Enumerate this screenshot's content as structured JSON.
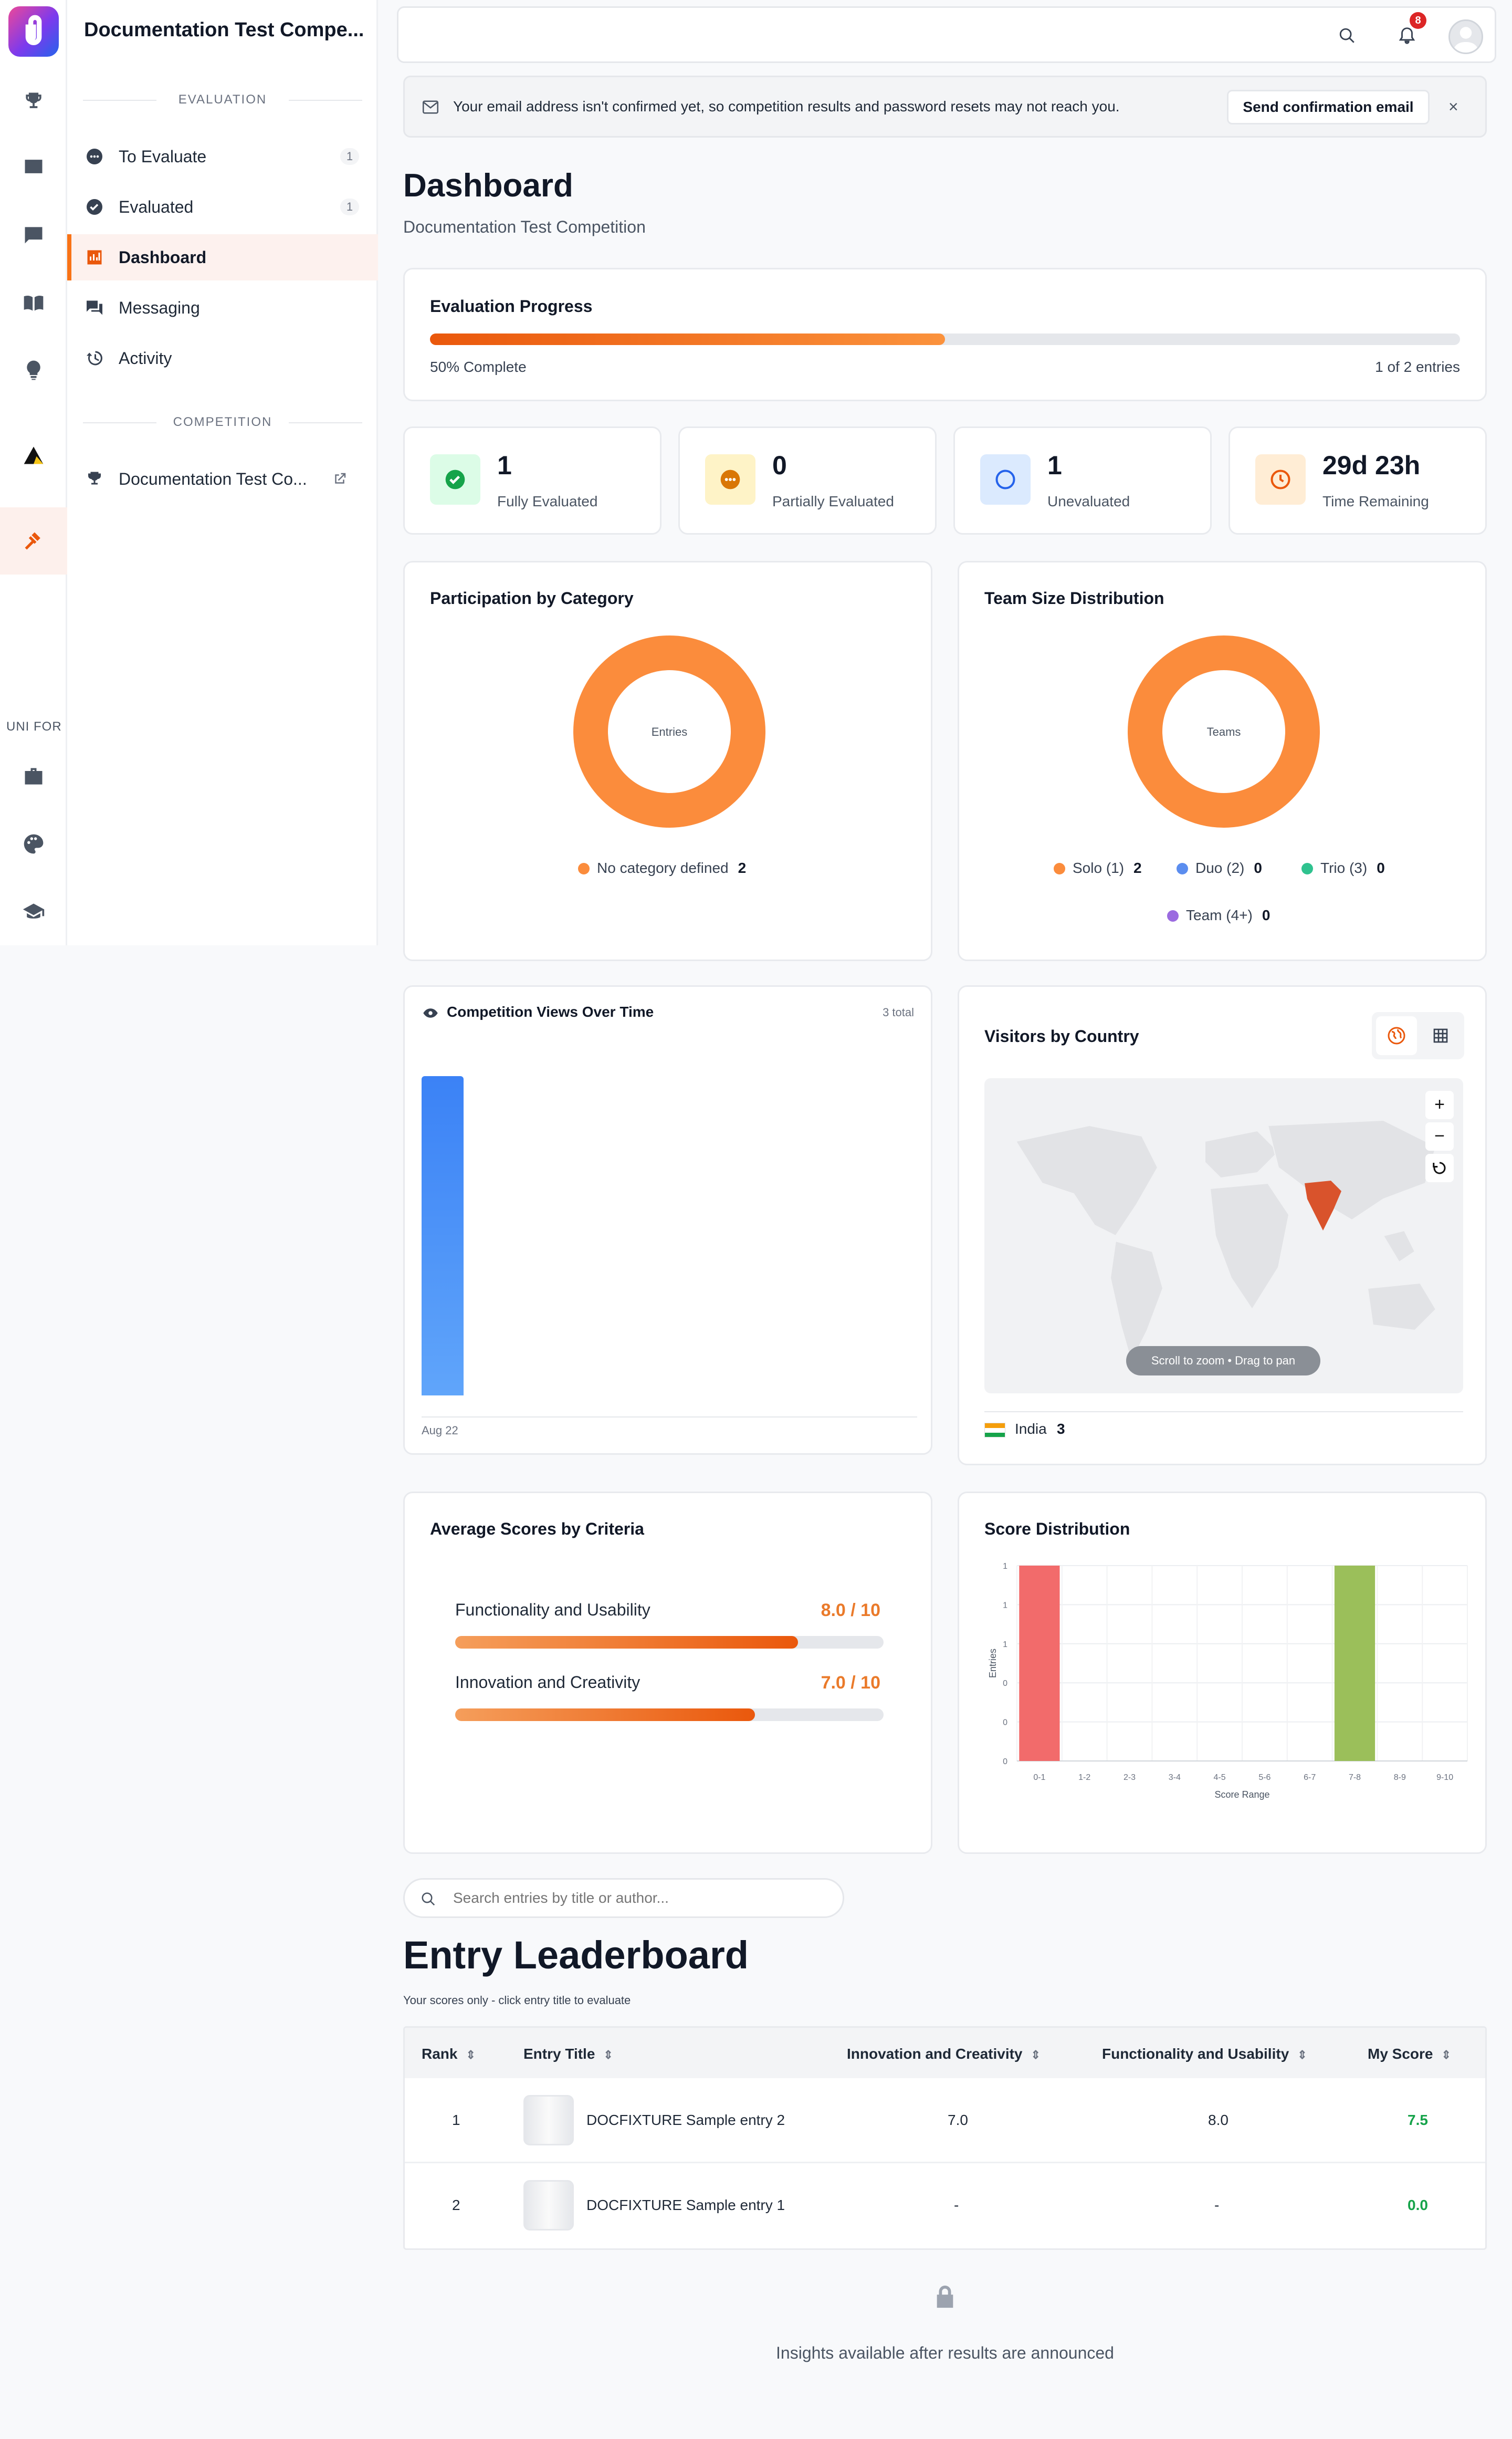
{
  "rail": {
    "label": "UNI FOR"
  },
  "sidebar": {
    "title": "Documentation Test Compe...",
    "section_evaluation": "EVALUATION",
    "section_competition": "COMPETITION",
    "items": [
      {
        "label": "To Evaluate",
        "count": "1"
      },
      {
        "label": "Evaluated",
        "count": "1"
      },
      {
        "label": "Dashboard"
      },
      {
        "label": "Messaging"
      },
      {
        "label": "Activity"
      }
    ],
    "competition_link": "Documentation Test Co..."
  },
  "topbar": {
    "notification_count": "8"
  },
  "alert": {
    "message": "Your email address isn't confirmed yet, so competition results and password resets may not reach you.",
    "button": "Send confirmation email"
  },
  "page": {
    "title": "Dashboard",
    "subtitle": "Documentation Test Competition"
  },
  "progress": {
    "title": "Evaluation Progress",
    "percent": 50,
    "percent_label": "50% Complete",
    "entries_label": "1 of 2 entries"
  },
  "stats": [
    {
      "value": "1",
      "label": "Fully Evaluated",
      "color": "#16a34a",
      "bg": "#dcfce7"
    },
    {
      "value": "0",
      "label": "Partially Evaluated",
      "color": "#d97706",
      "bg": "#fef3c7"
    },
    {
      "value": "1",
      "label": "Unevaluated",
      "color": "#2563eb",
      "bg": "#dbeafe"
    },
    {
      "value": "29d 23h",
      "label": "Time Remaining",
      "color": "#ea580c",
      "bg": "#ffedd5"
    }
  ],
  "participation": {
    "title": "Participation by Category",
    "center": "Entries",
    "legend": [
      {
        "label": "No category defined",
        "value": "2",
        "color": "#fb8c3c"
      }
    ]
  },
  "team_size": {
    "title": "Team Size Distribution",
    "center": "Teams",
    "legend": [
      {
        "label": "Solo (1)",
        "value": "2",
        "color": "#fb8c3c"
      },
      {
        "label": "Duo (2)",
        "value": "0",
        "color": "#5b8def"
      },
      {
        "label": "Trio (3)",
        "value": "0",
        "color": "#2fc28f"
      },
      {
        "label": "Team (4+)",
        "value": "0",
        "color": "#9b6be0"
      }
    ]
  },
  "views": {
    "title": "Competition Views Over Time",
    "total": "3 total",
    "x_label": "Aug 22"
  },
  "visitors": {
    "title": "Visitors by Country",
    "hint": "Scroll to zoom • Drag to pan",
    "zoom_in": "+",
    "zoom_out": "−",
    "country": "India",
    "country_value": "3"
  },
  "avg_scores": {
    "title": "Average Scores by Criteria",
    "items": [
      {
        "label": "Functionality and Usability",
        "score": "8.0 / 10",
        "value": 8.0
      },
      {
        "label": "Innovation and Creativity",
        "score": "7.0 / 10",
        "value": 7.0
      }
    ]
  },
  "chart_data": {
    "type": "bar",
    "title": "Score Distribution",
    "xlabel": "Score Range",
    "ylabel": "Entries",
    "categories": [
      "0-1",
      "1-2",
      "2-3",
      "3-4",
      "4-5",
      "5-6",
      "6-7",
      "7-8",
      "8-9",
      "9-10"
    ],
    "values": [
      1,
      0,
      0,
      0,
      0,
      0,
      0,
      1,
      0,
      0
    ],
    "y_ticks": [
      "0",
      "0",
      "0",
      "1",
      "1",
      "1"
    ],
    "ylim": [
      0,
      1
    ],
    "colors": [
      "#f26b6b",
      null,
      null,
      null,
      null,
      null,
      null,
      "#9bbf5a",
      null,
      null
    ]
  },
  "search": {
    "placeholder": "Search entries by title or author..."
  },
  "leaderboard": {
    "title": "Entry Leaderboard",
    "subtitle": "Your scores only - click entry title to evaluate",
    "columns": [
      "Rank",
      "Entry Title",
      "Innovation and Creativity",
      "Functionality and Usability",
      "My Score"
    ],
    "rows": [
      {
        "rank": "1",
        "title": "DOCFIXTURE Sample entry 2",
        "innovation": "7.0",
        "functionality": "8.0",
        "score": "7.5"
      },
      {
        "rank": "2",
        "title": "DOCFIXTURE Sample entry 1",
        "innovation": "-",
        "functionality": "-",
        "score": "0.0"
      }
    ]
  },
  "insights": {
    "text": "Insights available after results are announced"
  }
}
